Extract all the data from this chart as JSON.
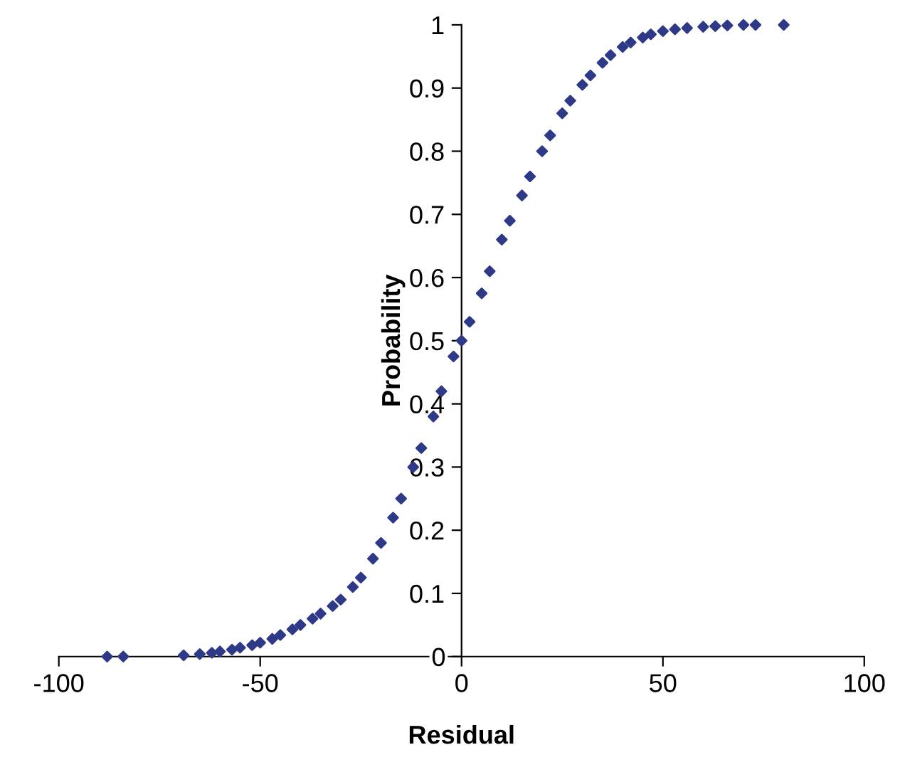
{
  "chart_data": {
    "type": "scatter",
    "xlabel": "Residual",
    "ylabel": "Probability",
    "x": [
      -88,
      -84,
      -69,
      -65,
      -62,
      -60,
      -57,
      -55,
      -52,
      -50,
      -47,
      -45,
      -42,
      -40,
      -37,
      -35,
      -32,
      -30,
      -27,
      -25,
      -22,
      -20,
      -17,
      -15,
      -12,
      -10,
      -7,
      -5,
      -2,
      0,
      2,
      5,
      7,
      10,
      12,
      15,
      17,
      20,
      22,
      25,
      27,
      30,
      32,
      35,
      37,
      40,
      42,
      45,
      47,
      50,
      53,
      56,
      60,
      63,
      66,
      70,
      73,
      80
    ],
    "series": [
      {
        "color": "#2e3a87",
        "values": [
          0,
          0,
          0.002,
          0.004,
          0.006,
          0.008,
          0.011,
          0.014,
          0.018,
          0.022,
          0.028,
          0.034,
          0.043,
          0.05,
          0.06,
          0.068,
          0.08,
          0.09,
          0.11,
          0.125,
          0.155,
          0.18,
          0.22,
          0.25,
          0.3,
          0.33,
          0.38,
          0.42,
          0.475,
          0.5,
          0.53,
          0.575,
          0.61,
          0.66,
          0.69,
          0.73,
          0.76,
          0.8,
          0.825,
          0.86,
          0.88,
          0.905,
          0.92,
          0.94,
          0.952,
          0.965,
          0.972,
          0.98,
          0.985,
          0.99,
          0.993,
          0.995,
          0.997,
          0.998,
          0.999,
          1,
          1,
          1
        ]
      }
    ],
    "xlim": [
      -100,
      100
    ],
    "ylim": [
      0,
      1
    ],
    "xticks": [
      -100,
      -50,
      0,
      50,
      100
    ],
    "yticks": [
      0,
      0.1,
      0.2,
      0.3,
      0.4,
      0.5,
      0.6,
      0.7,
      0.8,
      0.9,
      1
    ],
    "marker": "diamond",
    "grid": false,
    "legend": false
  }
}
